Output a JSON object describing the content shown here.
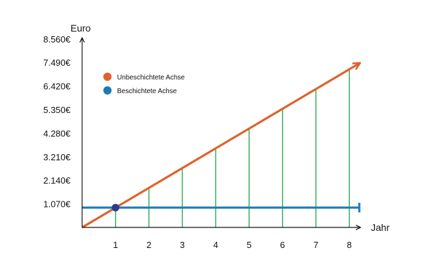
{
  "chart_data": {
    "type": "line",
    "title": "",
    "xlabel": "Jahr",
    "ylabel": "Euro",
    "x_ticks": [
      1,
      2,
      3,
      4,
      5,
      6,
      7,
      8
    ],
    "y_ticks": [
      "1.070€",
      "2.140€",
      "3.210€",
      "4.280€",
      "5.350€",
      "6.420€",
      "7.490€",
      "8.560€"
    ],
    "y_tick_values": [
      1070,
      2140,
      3210,
      4280,
      5350,
      6420,
      7490,
      8560
    ],
    "xlim": [
      0,
      8.3
    ],
    "ylim": [
      0,
      8560
    ],
    "grid": false,
    "legend_position": "top-left",
    "series": [
      {
        "name": "Unbeschichtete Achse",
        "color": "#e0612b",
        "x": [
          0,
          8.3
        ],
        "y": [
          0,
          7450
        ]
      },
      {
        "name": "Beschichtete Achse",
        "color": "#1b7ab8",
        "x": [
          0,
          8.3
        ],
        "y": [
          900,
          900
        ]
      }
    ],
    "difference_lines": {
      "color": "#2aa84a",
      "x": [
        1,
        2,
        3,
        4,
        5,
        6,
        7,
        8
      ]
    },
    "break_even": {
      "x": 1.0,
      "y": 900,
      "color": "#2e3b8c"
    }
  }
}
